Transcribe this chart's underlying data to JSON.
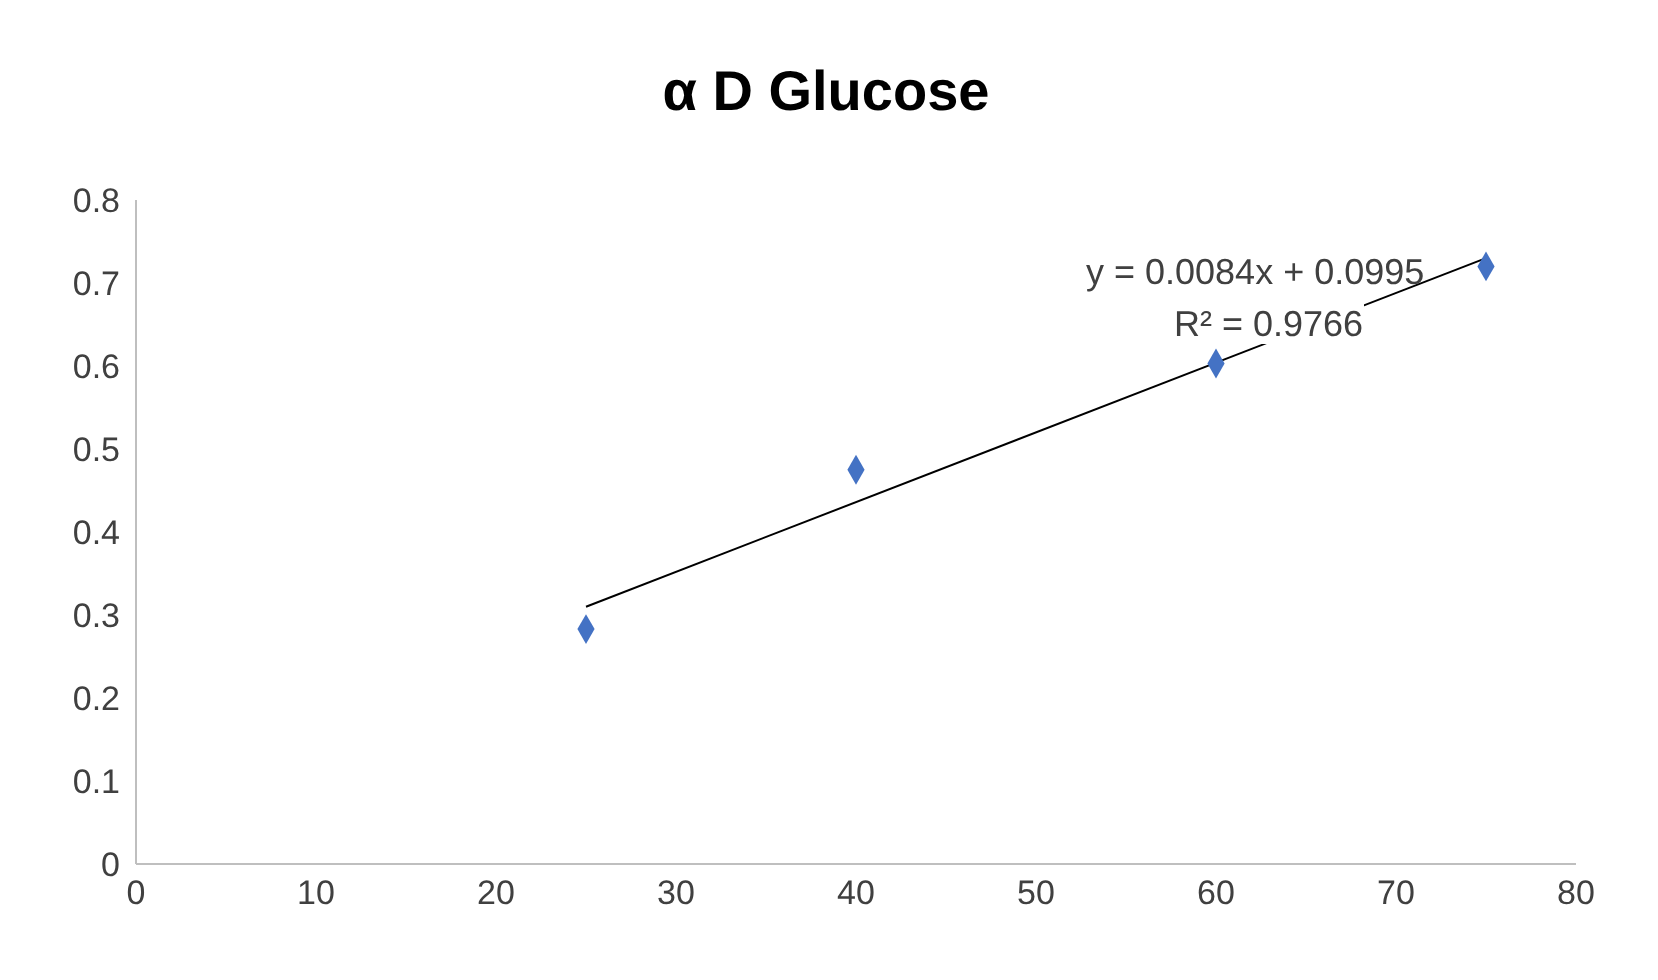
{
  "chart_data": {
    "type": "scatter",
    "title": "α D Glucose",
    "xlim": [
      0,
      80
    ],
    "xticks": [
      0,
      10,
      20,
      30,
      40,
      50,
      60,
      70,
      80
    ],
    "ylim": [
      0,
      0.8
    ],
    "yticks": [
      0,
      0.1,
      0.2,
      0.3,
      0.4,
      0.5,
      0.6,
      0.7,
      0.8
    ],
    "annotations": [
      "y = 0.0084x + 0.0995",
      "R² = 0.9766"
    ],
    "series": [
      {
        "type": "scatter",
        "color": "#4472c4",
        "marker": "diamond",
        "x": [
          25,
          40,
          60,
          75
        ],
        "values": [
          0.283,
          0.475,
          0.603,
          0.72
        ]
      },
      {
        "type": "line",
        "color": "#000000",
        "marker": "none",
        "x": [
          25,
          75
        ],
        "values": [
          0.31,
          0.73
        ]
      }
    ]
  }
}
